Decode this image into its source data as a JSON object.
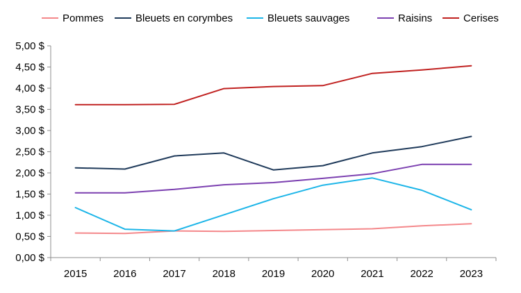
{
  "chart_data": {
    "type": "line",
    "title": "",
    "xlabel": "",
    "ylabel": "",
    "categories": [
      "2015",
      "2016",
      "2017",
      "2018",
      "2019",
      "2020",
      "2021",
      "2022",
      "2023"
    ],
    "ylim": [
      0,
      5
    ],
    "ystep": 0.5,
    "y_tick_labels": [
      "0,00 $",
      "0,50 $",
      "1,00 $",
      "1,50 $",
      "2,00 $",
      "2,50 $",
      "3,00 $",
      "3,50 $",
      "4,00 $",
      "4,50 $",
      "5,00 $"
    ],
    "grid": false,
    "legend_position": "top",
    "series": [
      {
        "name": "Pommes",
        "color": "#F4878A",
        "values": [
          0.58,
          0.57,
          0.63,
          0.62,
          0.64,
          0.66,
          0.68,
          0.75,
          0.8
        ]
      },
      {
        "name": "Bleuets en corymbes",
        "color": "#1F3A5A",
        "values": [
          2.12,
          2.09,
          2.4,
          2.47,
          2.07,
          2.17,
          2.47,
          2.62,
          2.86
        ]
      },
      {
        "name": "Bleuets sauvages",
        "color": "#1CB5E8",
        "values": [
          1.18,
          0.67,
          0.63,
          1.01,
          1.39,
          1.71,
          1.88,
          1.59,
          1.13
        ]
      },
      {
        "name": "Raisins",
        "color": "#7B3FB0",
        "values": [
          1.53,
          1.53,
          1.61,
          1.72,
          1.77,
          1.87,
          1.98,
          2.2,
          2.2
        ]
      },
      {
        "name": "Cerises",
        "color": "#C0201F",
        "values": [
          3.61,
          3.61,
          3.62,
          3.99,
          4.04,
          4.06,
          4.35,
          4.43,
          4.53
        ]
      }
    ]
  }
}
